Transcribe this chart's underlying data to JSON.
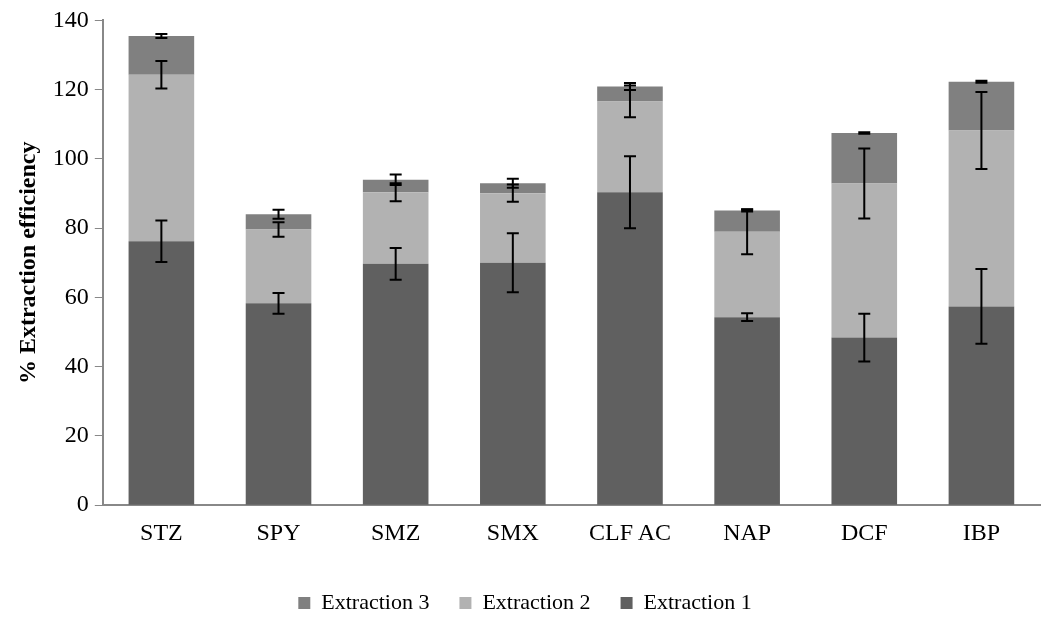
{
  "chart_data": {
    "type": "bar",
    "stacked": true,
    "ylabel": "% Extraction efficiency",
    "categories": [
      "STZ",
      "SPY",
      "SMZ",
      "SMX",
      "CLF AC",
      "NAP",
      "DCF",
      "IBP"
    ],
    "ylim": [
      0,
      140
    ],
    "yticks": [
      0,
      20,
      40,
      60,
      80,
      100,
      120,
      140
    ],
    "grid": false,
    "legend": "bottom",
    "series": [
      {
        "name": "Extraction 1",
        "color": "#606060",
        "values": [
          76.2,
          58.3,
          69.7,
          70.0,
          90.4,
          54.3,
          48.4,
          57.4
        ],
        "errors": [
          6.0,
          3.0,
          4.6,
          8.5,
          10.4,
          1.1,
          6.9,
          10.8
        ]
      },
      {
        "name": "Extraction 2",
        "color": "#b2b2b2",
        "values": [
          48.1,
          21.3,
          20.7,
          20.1,
          26.2,
          24.7,
          44.5,
          50.8
        ],
        "errors": [
          4.0,
          2.1,
          2.6,
          2.5,
          4.6,
          6.5,
          10.1,
          11.1
        ]
      },
      {
        "name": "Extraction 3",
        "color": "#808080",
        "values": [
          11.2,
          4.4,
          3.6,
          2.9,
          4.3,
          6.1,
          14.6,
          14.1
        ],
        "errors": [
          0.6,
          1.3,
          1.5,
          1.3,
          1.0,
          0.3,
          0.2,
          0.3
        ]
      }
    ]
  }
}
